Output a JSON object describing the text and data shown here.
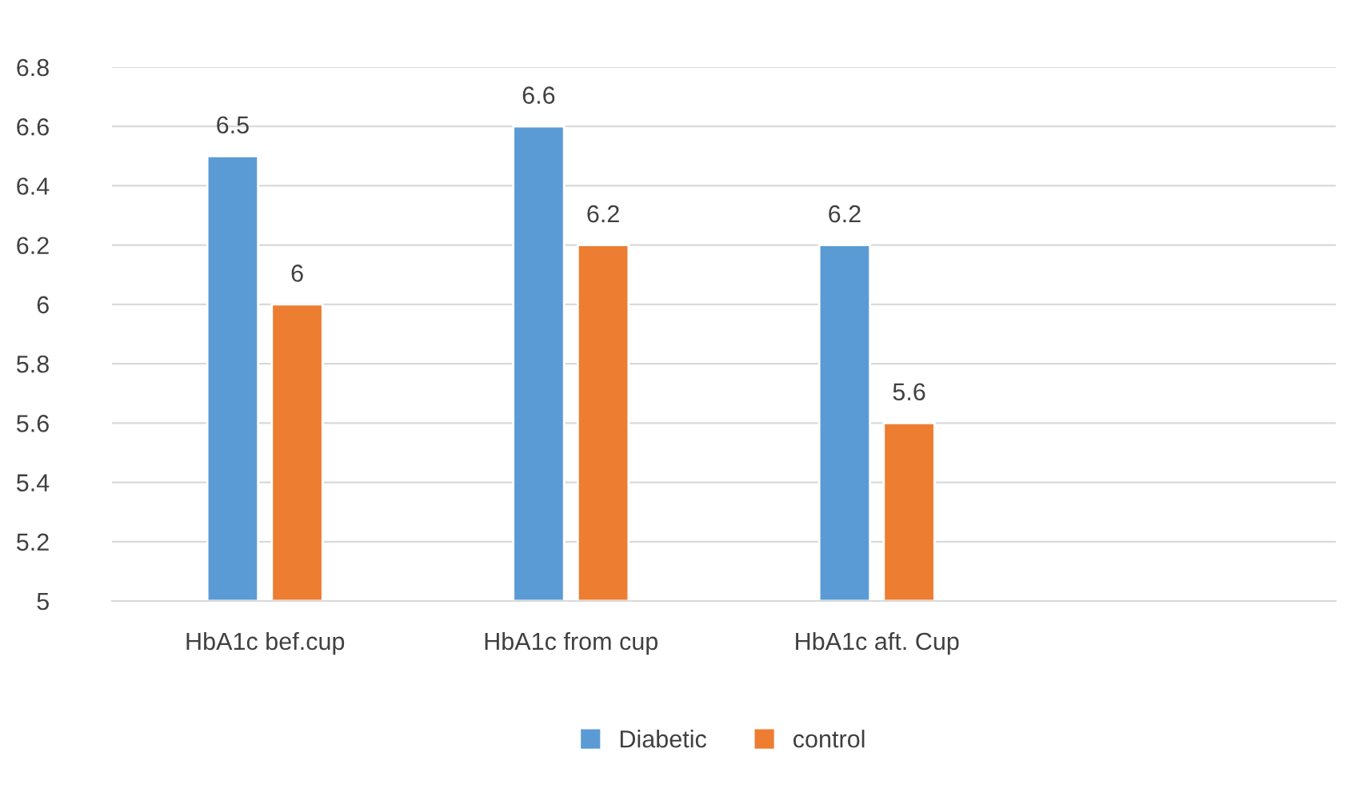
{
  "chart_data": {
    "type": "bar",
    "categories": [
      "HbA1c bef.cup",
      "HbA1c from cup",
      "HbA1c aft. Cup",
      null
    ],
    "series": [
      {
        "name": "Diabetic",
        "color": "#5b9bd5",
        "values": [
          6.5,
          6.6,
          6.2,
          null
        ]
      },
      {
        "name": "control",
        "color": "#ed7d31",
        "values": [
          6,
          6.2,
          5.6,
          null
        ]
      }
    ],
    "ylim": [
      5,
      6.8
    ],
    "yticks": [
      5,
      5.2,
      5.4,
      5.6,
      5.8,
      6,
      6.2,
      6.4,
      6.6,
      6.8
    ],
    "grid": "y",
    "legend": "bottom",
    "data_labels": true
  }
}
